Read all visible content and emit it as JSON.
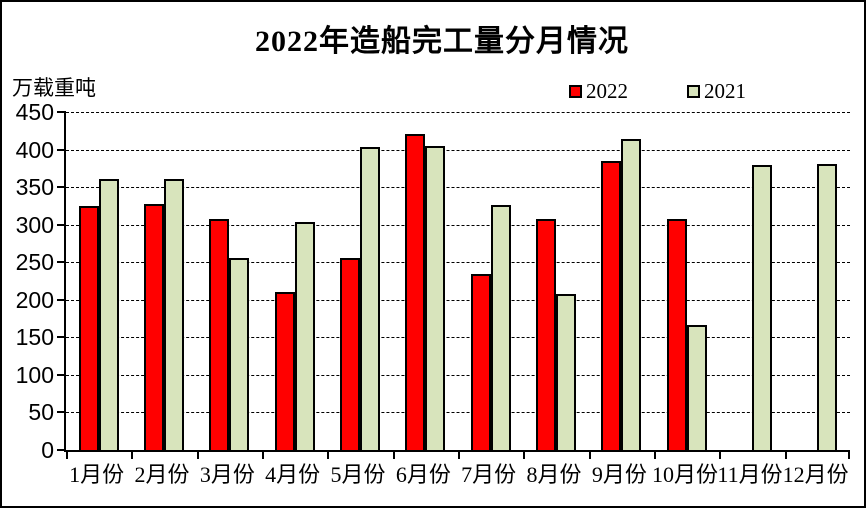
{
  "chart_data": {
    "type": "bar",
    "title": "2022年造船完工量分月情况",
    "ylabel": "万载重吨",
    "xlabel": "",
    "categories": [
      "1月份",
      "2月份",
      "3月份",
      "4月份",
      "5月份",
      "6月份",
      "7月份",
      "8月份",
      "9月份",
      "10月份",
      "11月份",
      "12月份"
    ],
    "series": [
      {
        "name": "2022",
        "color": "#ff0000",
        "values": [
          325,
          327,
          308,
          210,
          256,
          421,
          235,
          308,
          385,
          307,
          null,
          null
        ]
      },
      {
        "name": "2021",
        "color": "#d8e4bc",
        "values": [
          361,
          361,
          256,
          303,
          404,
          405,
          326,
          208,
          414,
          167,
          380,
          381
        ]
      }
    ],
    "ylim": [
      0,
      450
    ],
    "ytick_step": 50,
    "grid": "horizontal-dashed",
    "legend_position": "top-right"
  }
}
